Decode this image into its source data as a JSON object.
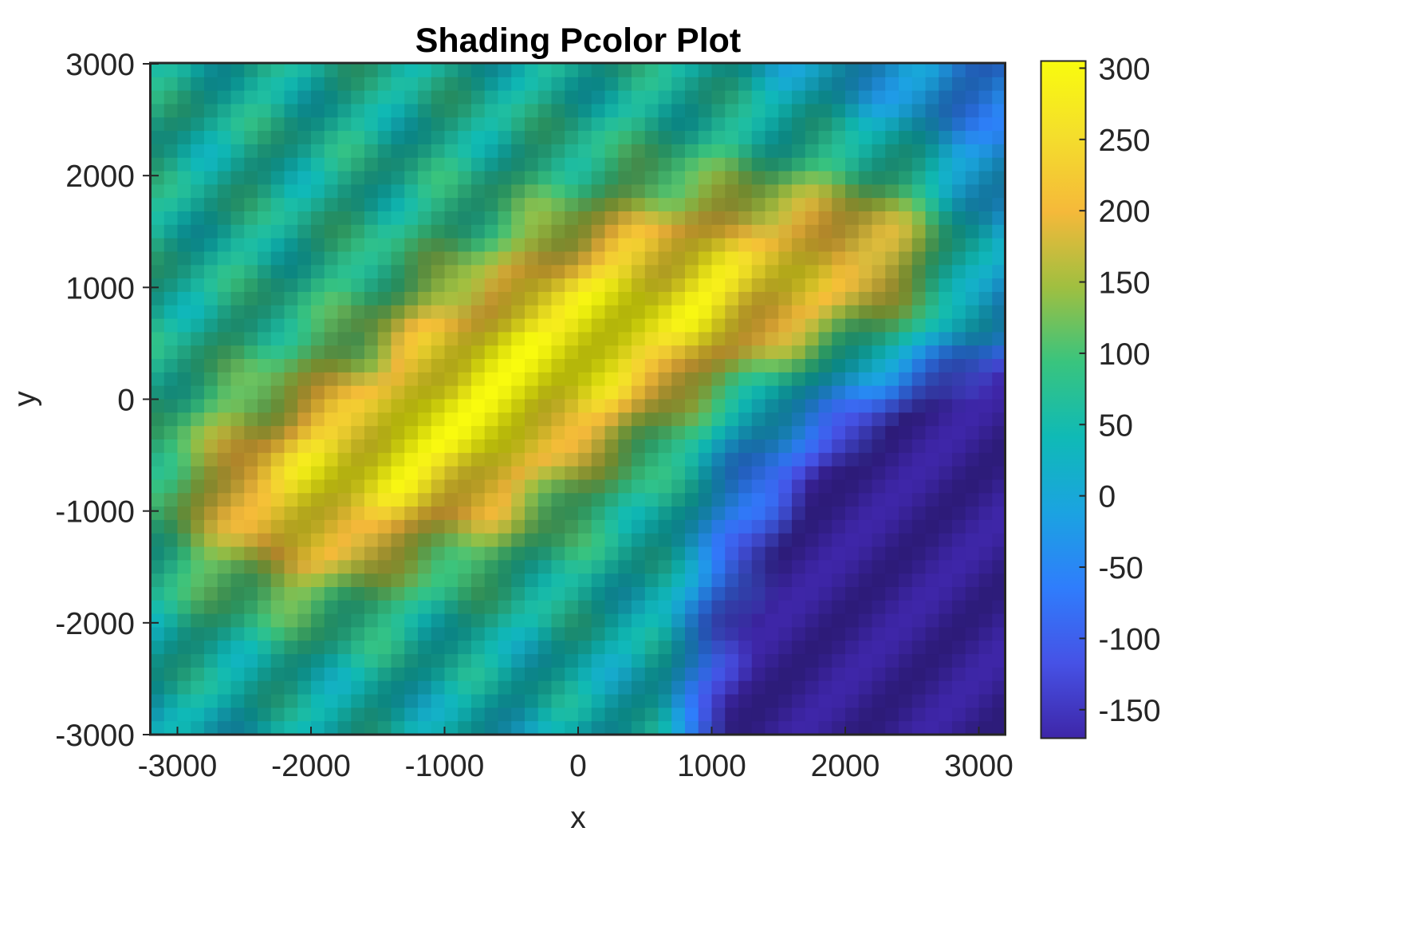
{
  "chart_data": {
    "type": "heatmap",
    "title": "Shading Pcolor Plot",
    "xlabel": "x",
    "ylabel": "y",
    "xlim": [
      -3200,
      3200
    ],
    "ylim": [
      -3000,
      3000
    ],
    "x_ticks": [
      -3000,
      -2000,
      -1000,
      0,
      1000,
      2000,
      3000
    ],
    "x_tick_labels": [
      "-3000",
      "-2000",
      "-1000",
      "0",
      "1000",
      "2000",
      "3000"
    ],
    "y_ticks": [
      -3000,
      -2000,
      -1000,
      0,
      1000,
      2000,
      3000
    ],
    "y_tick_labels": [
      "-3000",
      "-2000",
      "-1000",
      "0",
      "1000",
      "2000",
      "3000"
    ],
    "colorbar": {
      "clim": [
        -170,
        305
      ],
      "ticks": [
        300,
        250,
        200,
        150,
        100,
        50,
        0,
        -50,
        -100,
        -150
      ],
      "tick_labels": [
        "300",
        "250",
        "200",
        "150",
        "100",
        "50",
        "0",
        "-50",
        "-100",
        "-150"
      ],
      "colormap": "parula",
      "colors": [
        "#3e26a8",
        "#4652e6",
        "#2f7dfc",
        "#1ba3e1",
        "#0fbab6",
        "#39c47e",
        "#a0bf40",
        "#f5b93a",
        "#f4de2c",
        "#f9fb0e"
      ]
    },
    "shading": "interp",
    "grid": false,
    "surface": {
      "description_values": "elevation-like field",
      "ridge_line": {
        "x": [
          -2000,
          -1500,
          -1000,
          -700,
          -300,
          200,
          600,
          1200,
          2100
        ],
        "y": [
          -850,
          -550,
          -350,
          0,
          300,
          650,
          850,
          1000,
          1300
        ],
        "value": [
          200,
          220,
          235,
          250,
          245,
          240,
          225,
          215,
          200
        ]
      },
      "low_region": {
        "x_min": 1000,
        "y_max": 500,
        "value": -150
      }
    }
  }
}
